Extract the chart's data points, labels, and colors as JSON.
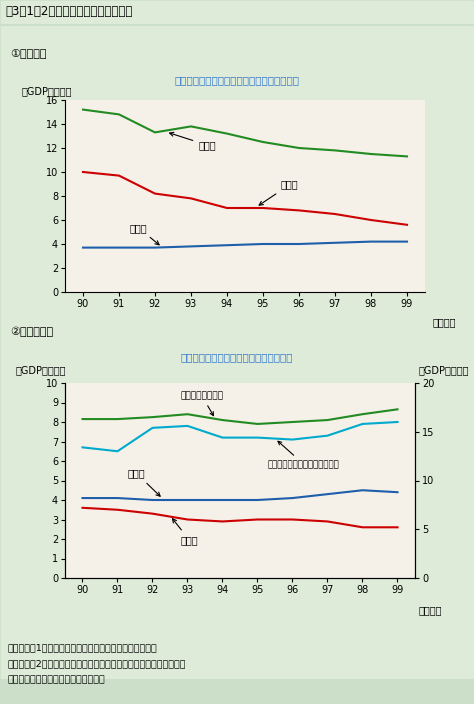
{
  "title": "第3－1－2図　国と地方の収入の内訳",
  "chart1": {
    "subtitle": "①国の収入",
    "annotation": "大幅に減少する直接税（法人税、所得税等）",
    "ylabel": "（GDP比、％）",
    "xlabel_unit": "（年度）",
    "years": [
      90,
      91,
      92,
      93,
      94,
      95,
      96,
      97,
      98,
      99
    ],
    "ylim": [
      0,
      16
    ],
    "yticks": [
      0,
      2,
      4,
      6,
      8,
      10,
      12,
      14,
      16
    ],
    "series": {
      "収入計": {
        "color": "#228B22",
        "values": [
          15.2,
          14.8,
          13.3,
          13.8,
          13.2,
          12.5,
          12.0,
          11.8,
          11.5,
          11.3
        ]
      },
      "直接税": {
        "color": "#CC0000",
        "values": [
          10.0,
          9.7,
          8.2,
          7.8,
          7.0,
          7.0,
          6.8,
          6.5,
          6.0,
          5.6
        ]
      },
      "間接税": {
        "color": "#1E5EAA",
        "values": [
          3.7,
          3.7,
          3.7,
          3.8,
          3.9,
          4.0,
          4.0,
          4.1,
          4.2,
          4.2
        ]
      }
    }
  },
  "chart2": {
    "subtitle": "②地方の収入",
    "annotation": "直接税の落ち込みを地方交付税がカバー",
    "ylabel_left": "（GDP比、％）",
    "ylabel_right": "（GDP比、％）",
    "xlabel_unit": "（年度）",
    "years": [
      90,
      91,
      92,
      93,
      94,
      95,
      96,
      97,
      98,
      99
    ],
    "ylim_left": [
      0,
      10
    ],
    "ylim_right": [
      0,
      20
    ],
    "yticks_left": [
      0,
      1,
      2,
      3,
      4,
      5,
      6,
      7,
      8,
      9,
      10
    ],
    "yticks_right": [
      0,
      5,
      10,
      15,
      20
    ],
    "series": {
      "収入計_right": {
        "color": "#228B22",
        "label": "収入計（右目盛）",
        "values": [
          16.3,
          16.3,
          16.5,
          16.8,
          16.2,
          15.8,
          16.0,
          16.2,
          16.8,
          17.3
        ]
      },
      "地方交付税": {
        "color": "#00AACC",
        "label": "地方交付税等の国等からの移転",
        "values": [
          6.7,
          6.5,
          7.7,
          7.8,
          7.2,
          7.2,
          7.1,
          7.3,
          7.9,
          8.0
        ]
      },
      "間接税": {
        "color": "#1E5EAA",
        "label": "間接税",
        "values": [
          4.1,
          4.1,
          4.0,
          4.0,
          4.0,
          4.0,
          4.1,
          4.3,
          4.5,
          4.4
        ]
      },
      "直接税": {
        "color": "#CC0000",
        "label": "直接税",
        "values": [
          3.6,
          3.5,
          3.3,
          3.0,
          2.9,
          3.0,
          3.0,
          2.9,
          2.6,
          2.6
        ]
      }
    }
  },
  "footnote_lines": [
    "（備考）　1．内閣府「国民経済計算年報」により作成。",
    "　　　　　2．国等からの移転収入は、地方交付税以外に、補助金、",
    "　　　　　　　国庫金支出等を含む。"
  ],
  "outer_bg": "#ccdfc8",
  "inner_bg": "#deebd8",
  "plot_bg": "#f5f0e8",
  "annotation_color": "#3377CC",
  "title_bg": "#ffffff"
}
